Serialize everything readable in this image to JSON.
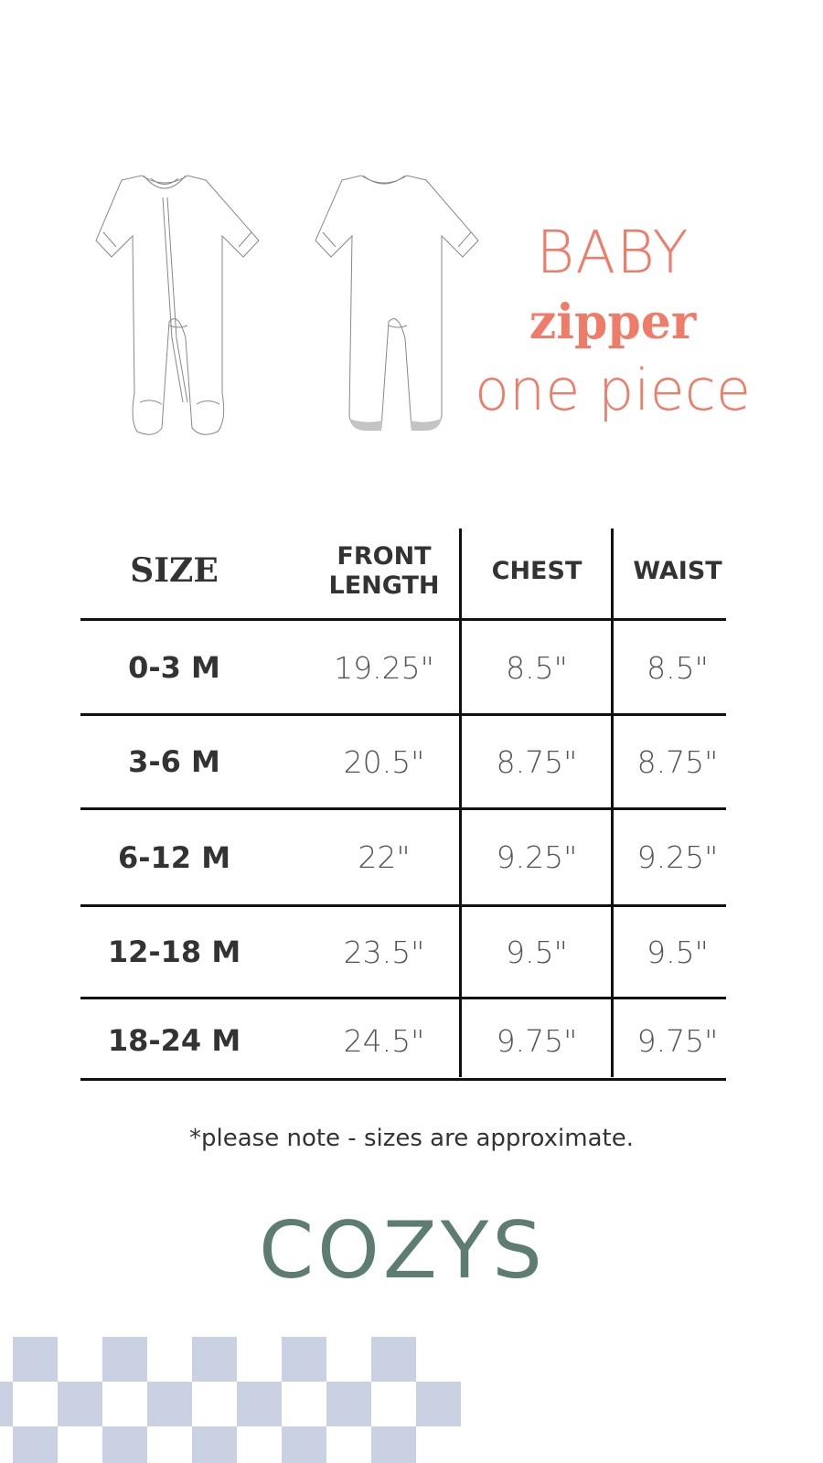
{
  "title": {
    "line1": "BABY",
    "line2": "zipper",
    "line3": "one piece"
  },
  "table": {
    "headers": [
      "SIZE",
      "FRONT LENGTH",
      "CHEST",
      "WAIST"
    ],
    "rows": [
      [
        "0-3 M",
        "19.25\"",
        "8.5\"",
        "8.5\""
      ],
      [
        "3-6 M",
        "20.5\"",
        "8.75\"",
        "8.75\""
      ],
      [
        "6-12 M",
        "22\"",
        "9.25\"",
        "9.25\""
      ],
      [
        "12-18 M",
        "23.5\"",
        "9.5\"",
        "9.5\""
      ],
      [
        "18-24 M",
        "24.5\"",
        "9.75\"",
        "9.75\""
      ]
    ]
  },
  "note": "*please note - sizes are approximate.",
  "brand": "COZYS",
  "colors": {
    "accent": "#ee7c68",
    "brand": "#5e7d72",
    "checker": "#c9d1e3",
    "foot_sole": "#c4c4c4"
  }
}
